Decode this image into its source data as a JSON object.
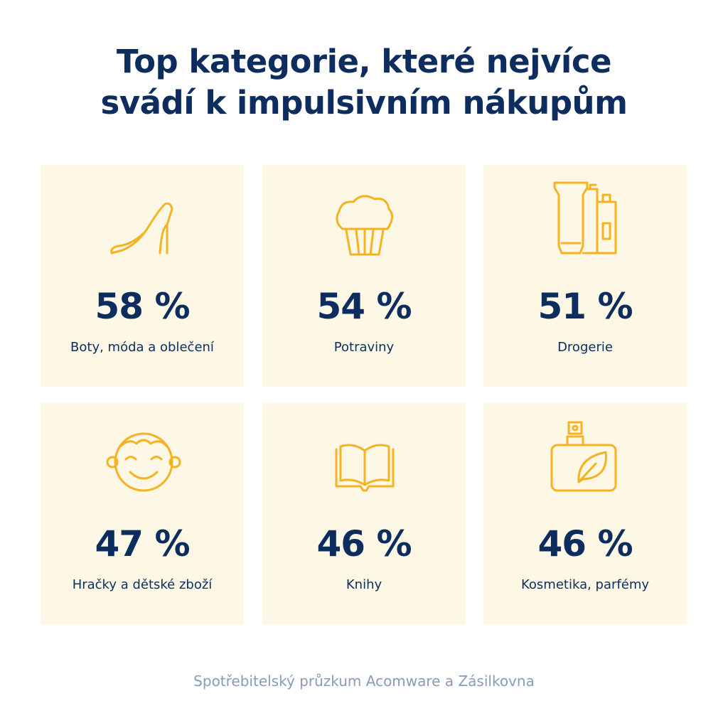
{
  "header": {
    "title_lines": [
      "Top kategorie, které nejvíce",
      "svádí k impulsivním nákupům"
    ]
  },
  "cards": [
    {
      "value": "58 %",
      "label": "Boty, móda a oblečení"
    },
    {
      "value": "54 %",
      "label": "Potraviny"
    },
    {
      "value": "51 %",
      "label": "Drogerie"
    },
    {
      "value": "47 %",
      "label": "Hračky a dětské zboží"
    },
    {
      "value": "46 %",
      "label": "Knihy"
    },
    {
      "value": "46 %",
      "label": "Kosmetika, parfémy"
    }
  ],
  "footer": {
    "source": "Spotřebitelský průzkum Acomware a Zásilkovna"
  }
}
